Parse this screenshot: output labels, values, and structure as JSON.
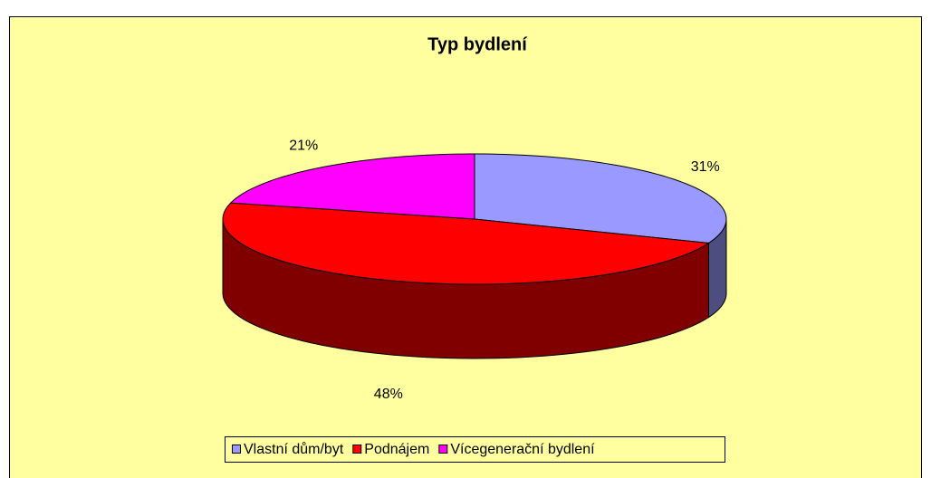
{
  "chart_data": {
    "type": "pie",
    "title": "Typ bydlení",
    "categories": [
      "Vlastní dům/byt",
      "Podnájem",
      "Vícegenerační bydlení"
    ],
    "values": [
      31,
      48,
      21
    ],
    "value_labels": [
      "31%",
      "48%",
      "21%"
    ],
    "colors": [
      "#9999ff",
      "#ff0000",
      "#ff00ff"
    ],
    "legend": "bottom"
  }
}
